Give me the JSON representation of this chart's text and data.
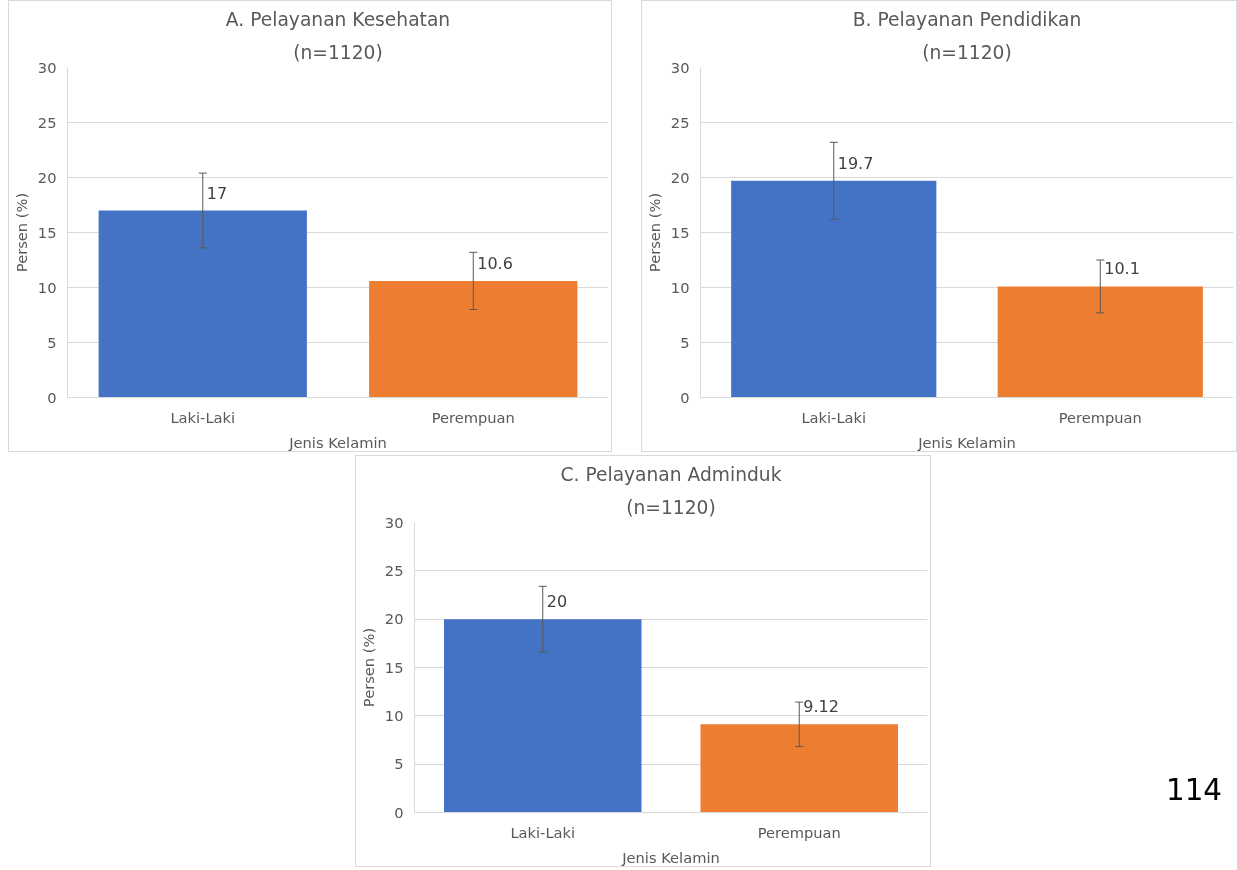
{
  "chart_data": [
    {
      "type": "bar",
      "title": "A. Pelayanan Kesehatan",
      "subtitle": "(n=1120)",
      "xlabel": "Jenis Kelamin",
      "ylabel": "Persen (%)",
      "categories": [
        "Laki-Laki",
        "Perempuan"
      ],
      "values": [
        17,
        10.6
      ],
      "colors": [
        "#4472c4",
        "#ed7d31"
      ],
      "errors": [
        3.4,
        2.6
      ],
      "data_labels": true,
      "ylim": [
        0,
        30
      ],
      "yticks": [
        0,
        5,
        10,
        15,
        20,
        25,
        30
      ],
      "grid": "y"
    },
    {
      "type": "bar",
      "title": "B. Pelayanan Pendidikan",
      "subtitle": "(n=1120)",
      "xlabel": "Jenis Kelamin",
      "ylabel": "Persen (%)",
      "categories": [
        "Laki-Laki",
        "Perempuan"
      ],
      "values": [
        19.7,
        10.1
      ],
      "colors": [
        "#4472c4",
        "#ed7d31"
      ],
      "errors": [
        3.5,
        2.4
      ],
      "data_labels": true,
      "ylim": [
        0,
        30
      ],
      "yticks": [
        0,
        5,
        10,
        15,
        20,
        25,
        30
      ],
      "grid": "y"
    },
    {
      "type": "bar",
      "title": "C. Pelayanan Adminduk",
      "subtitle": "(n=1120)",
      "xlabel": "Jenis Kelamin",
      "ylabel": "Persen (%)",
      "categories": [
        "Laki-Laki",
        "Perempuan"
      ],
      "values": [
        20,
        9.12
      ],
      "colors": [
        "#4472c4",
        "#ed7d31"
      ],
      "errors": [
        3.4,
        2.3
      ],
      "data_labels": true,
      "ylim": [
        0,
        30
      ],
      "yticks": [
        0,
        5,
        10,
        15,
        20,
        25,
        30
      ],
      "grid": "y",
      "annotations": [
        "114"
      ]
    }
  ]
}
